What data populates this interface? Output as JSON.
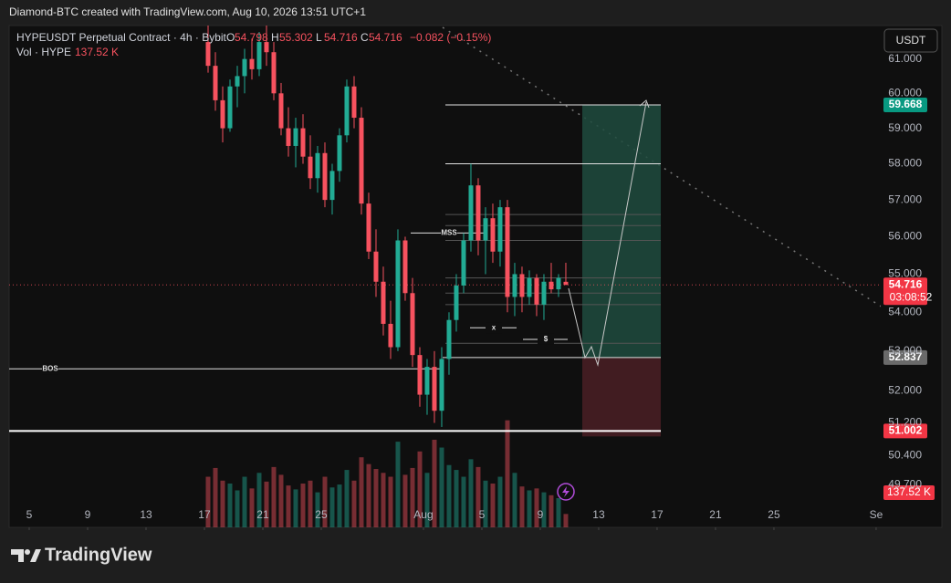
{
  "chart_data": {
    "type": "candlestick",
    "caption": "Diamond-BTC created with TradingView.com, Aug 10, 2026 13:51 UTC+1",
    "symbol": "HYPEUSDT Perpetual Contract · 4h · Bybit",
    "ohlc_header": [
      {
        "label": "O",
        "value": 54.798
      },
      {
        "label": "H",
        "value": 55.302
      },
      {
        "label": "L",
        "value": 54.716
      },
      {
        "label": "C",
        "value": 54.716
      }
    ],
    "change": "−0.082 (−0.15%)",
    "volume_header": {
      "label": "Vol · HYPE",
      "value": "137.52 K"
    },
    "currency": "USDT",
    "brand": "TradingView",
    "log_scale": true,
    "up_color": "#22ab94",
    "down_color": "#f7525f",
    "ylim": [
      48.69,
      61.99
    ],
    "yticks": [
      {
        "value": 61,
        "label": "61.000"
      },
      {
        "value": 60,
        "label": "60.000"
      },
      {
        "value": 59,
        "label": "59.000"
      },
      {
        "value": 58,
        "label": "58.000"
      },
      {
        "value": 57,
        "label": "57.000"
      },
      {
        "value": 56,
        "label": "56.000"
      },
      {
        "value": 55,
        "label": "55.000"
      },
      {
        "value": 54,
        "label": "54.000"
      },
      {
        "value": 53,
        "label": "53.000"
      },
      {
        "value": 52,
        "label": "52.000"
      },
      {
        "value": 51.2,
        "label": "51.200"
      },
      {
        "value": 50.4,
        "label": "50.400"
      },
      {
        "value": 49.7,
        "label": "49.700"
      }
    ],
    "xlim": [
      2.625,
      62.94
    ],
    "xticks": [
      {
        "value": 4,
        "label": "5"
      },
      {
        "value": 8,
        "label": "9"
      },
      {
        "value": 12,
        "label": "13"
      },
      {
        "value": 16,
        "label": "17"
      },
      {
        "value": 20,
        "label": "21"
      },
      {
        "value": 24,
        "label": "25"
      },
      {
        "value": 31,
        "label": "Aug"
      },
      {
        "value": 35,
        "label": "5"
      },
      {
        "value": 39,
        "label": "9"
      },
      {
        "value": 43,
        "label": "13"
      },
      {
        "value": 47,
        "label": "17"
      },
      {
        "value": 51,
        "label": "21"
      },
      {
        "value": 55,
        "label": "25"
      },
      {
        "value": 62,
        "label": "Se"
      }
    ],
    "x": [
      16.25,
      16.75,
      17.25,
      17.75,
      18.25,
      18.75,
      19.25,
      19.75,
      20.25,
      20.75,
      21.25,
      21.75,
      22.25,
      22.75,
      23.25,
      23.75,
      24.25,
      24.75,
      25.25,
      25.75,
      26.25,
      26.75,
      27.25,
      27.75,
      28.25,
      28.75,
      29.25,
      29.75,
      30.25,
      30.75,
      31.25,
      31.75,
      32.25,
      32.75,
      33.25,
      33.75,
      34.25,
      34.75,
      35.25,
      35.75,
      36.25,
      36.75,
      37.25,
      37.75,
      38.25,
      38.75,
      39.25,
      39.75,
      40.25,
      40.75
    ],
    "open": [
      61.5,
      60.8,
      59.8,
      59.0,
      60.2,
      60.5,
      61.0,
      60.7,
      61.5,
      61.2,
      60.0,
      59.0,
      58.5,
      59.0,
      58.2,
      57.6,
      58.3,
      57.0,
      57.8,
      58.8,
      60.2,
      59.3,
      56.9,
      55.6,
      54.8,
      53.7,
      53.1,
      55.9,
      54.5,
      52.9,
      51.9,
      52.6,
      51.5,
      52.8,
      53.8,
      54.7,
      55.9,
      57.4,
      55.9,
      56.5,
      55.6,
      56.8,
      54.4,
      55.0,
      54.4,
      54.9,
      54.2,
      54.8,
      54.6,
      54.798
    ],
    "high": [
      62.0,
      61.2,
      60.2,
      60.4,
      60.8,
      61.3,
      61.6,
      61.8,
      62.0,
      61.5,
      60.3,
      59.6,
      59.3,
      59.4,
      58.8,
      58.5,
      58.6,
      58.0,
      59.0,
      60.4,
      60.5,
      59.6,
      57.2,
      56.2,
      55.2,
      54.3,
      56.2,
      56.0,
      54.9,
      53.1,
      52.8,
      53.0,
      53.1,
      54.0,
      55.0,
      56.1,
      58.0,
      57.6,
      56.8,
      56.9,
      57.0,
      57.0,
      55.3,
      55.2,
      55.1,
      55.0,
      55.0,
      55.3,
      55.0,
      55.302
    ],
    "low": [
      60.6,
      59.5,
      58.6,
      58.9,
      59.6,
      60.0,
      60.4,
      60.5,
      60.8,
      59.8,
      58.8,
      58.2,
      57.9,
      58.0,
      57.3,
      57.2,
      56.8,
      56.6,
      57.5,
      58.6,
      59.0,
      56.6,
      55.4,
      54.4,
      53.4,
      52.8,
      53.0,
      54.3,
      52.6,
      51.6,
      51.4,
      51.2,
      51.1,
      52.4,
      53.5,
      54.5,
      55.6,
      55.5,
      55.0,
      55.3,
      55.2,
      54.0,
      53.9,
      54.0,
      54.2,
      53.9,
      53.8,
      54.5,
      54.4,
      54.716
    ],
    "close": [
      60.8,
      59.8,
      59.0,
      60.2,
      60.5,
      61.0,
      60.7,
      61.5,
      61.2,
      60.0,
      59.0,
      58.5,
      59.0,
      58.2,
      57.6,
      58.3,
      57.0,
      57.8,
      58.8,
      60.2,
      59.3,
      56.9,
      55.6,
      54.8,
      53.7,
      53.1,
      55.9,
      54.5,
      52.9,
      51.9,
      52.6,
      51.5,
      52.8,
      53.8,
      54.7,
      55.9,
      57.4,
      55.9,
      56.5,
      55.6,
      56.8,
      54.4,
      55.0,
      54.4,
      54.9,
      54.2,
      54.8,
      54.6,
      54.9,
      54.716
    ],
    "volume": [
      520000,
      610000,
      480000,
      450000,
      380000,
      520000,
      400000,
      560000,
      470000,
      620000,
      540000,
      430000,
      390000,
      450000,
      480000,
      360000,
      520000,
      410000,
      440000,
      590000,
      480000,
      720000,
      650000,
      600000,
      560000,
      520000,
      880000,
      540000,
      610000,
      780000,
      560000,
      900000,
      820000,
      640000,
      590000,
      520000,
      700000,
      620000,
      480000,
      450000,
      520000,
      1100000,
      560000,
      420000,
      380000,
      400000,
      360000,
      330000,
      300000,
      137520
    ],
    "vlim": [
      0,
      1500000
    ],
    "levels": [
      58.0,
      56.6,
      56.3,
      55.9,
      54.9,
      54.5,
      54.2,
      53.2
    ],
    "annotations": [
      {
        "text": "MSS",
        "price": 56.1
      },
      {
        "text": "BOS",
        "price": 52.55
      },
      {
        "text": "x",
        "price": 53.6
      },
      {
        "text": "$",
        "price": 53.3
      }
    ],
    "position": {
      "target": 59.668,
      "entry": 52.837,
      "stop": 51.002
    },
    "last_price": 54.716,
    "countdown": "03:08:52",
    "last_volume": "137.52 K"
  }
}
